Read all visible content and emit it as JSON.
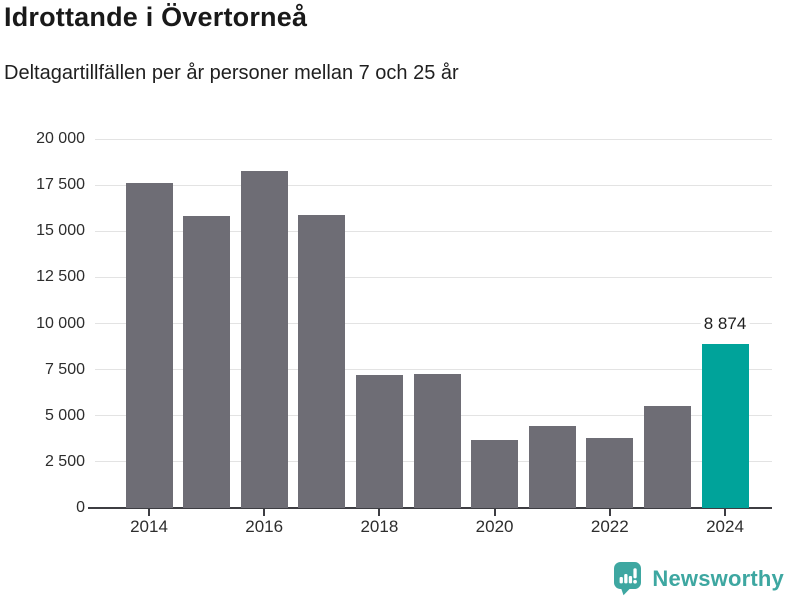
{
  "chart_data": {
    "type": "bar",
    "title": "Idrottande i Övertorneå",
    "subtitle": "Deltagartillfällen per år personer mellan 7 och 25 år",
    "categories": [
      "2014",
      "2015",
      "2016",
      "2017",
      "2018",
      "2019",
      "2020",
      "2021",
      "2022",
      "2023",
      "2024"
    ],
    "values": [
      17600,
      15800,
      18250,
      15900,
      7200,
      7270,
      3700,
      4460,
      3800,
      5550,
      8874
    ],
    "highlight_index": 10,
    "value_label": {
      "index": 10,
      "text": "8 874"
    },
    "xlabel": "",
    "ylabel": "",
    "ylim": [
      0,
      20000
    ],
    "ytick_step": 2500,
    "ytick_labels": [
      "0",
      "2 500",
      "5 000",
      "7 500",
      "10 000",
      "12 500",
      "15 000",
      "17 500",
      "20 000"
    ],
    "xtick_labels": [
      "2014",
      "2016",
      "2018",
      "2020",
      "2022",
      "2024"
    ],
    "grid": true,
    "legend": "none",
    "colors": {
      "bar_default": "#6e6d75",
      "bar_highlight": "#00a39a",
      "gridline": "#e3e3e3",
      "axis": "#3d3d42",
      "title_text": "#191919",
      "logo_teal": "#3ea7a1"
    }
  },
  "footer": {
    "brand": "Newsworthy"
  }
}
